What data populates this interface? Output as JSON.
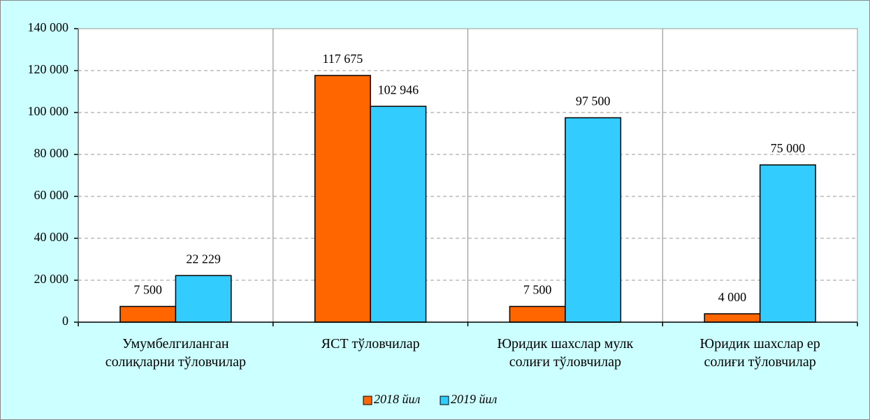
{
  "chart_data": {
    "type": "bar",
    "categories": [
      "Умумбелгиланган\nсолиқларни тўловчилар",
      "ЯСТ тўловчилар",
      "Юридик шахслар мулк\nсолиғи тўловчилар",
      "Юридик шахслар ер\nсолиғи тўловчилар"
    ],
    "series": [
      {
        "name": "2018 йил",
        "color": "#ff6600",
        "values": [
          7500,
          117675,
          7500,
          4000
        ],
        "value_labels": [
          "7 500",
          "117 675",
          "7 500",
          "4 000"
        ]
      },
      {
        "name": "2019 йил",
        "color": "#33ccff",
        "values": [
          22229,
          102946,
          97500,
          75000
        ],
        "value_labels": [
          "22 229",
          "102 946",
          "97 500",
          "75 000"
        ]
      }
    ],
    "ylim": [
      0,
      140000
    ],
    "yticks": [
      {
        "value": 0,
        "label": "0"
      },
      {
        "value": 20000,
        "label": "20 000"
      },
      {
        "value": 40000,
        "label": "40 000"
      },
      {
        "value": 60000,
        "label": "60 000"
      },
      {
        "value": 80000,
        "label": "80 000"
      },
      {
        "value": 100000,
        "label": "100 000"
      },
      {
        "value": 120000,
        "label": "120 000"
      },
      {
        "value": 140000,
        "label": "140 000"
      }
    ],
    "grid": true,
    "legend": "bottom"
  }
}
